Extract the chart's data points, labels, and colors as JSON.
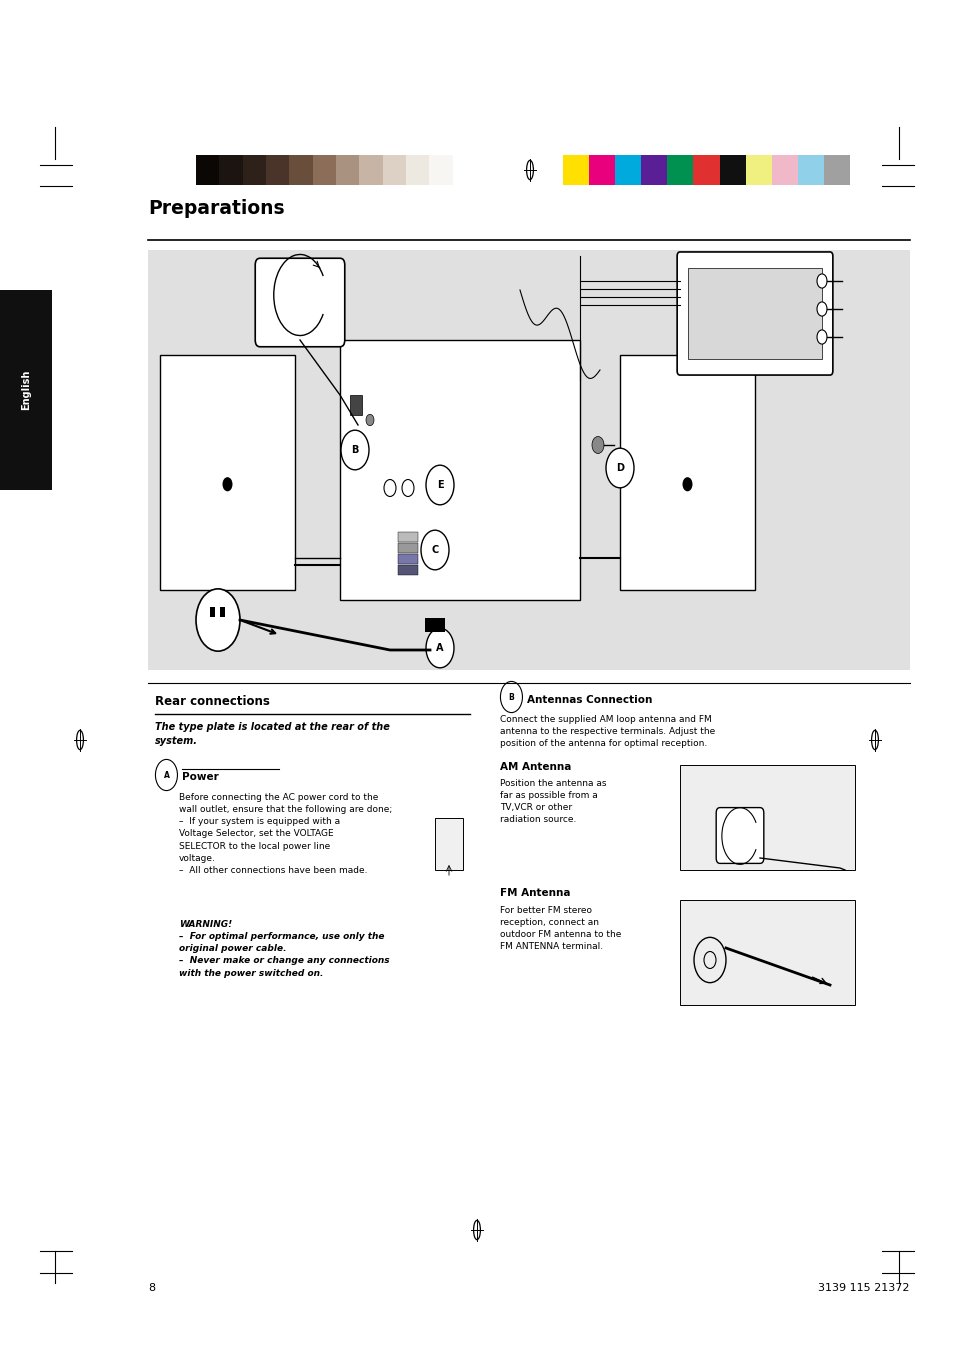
{
  "bg_color": "#ffffff",
  "page_width": 9.54,
  "page_height": 13.51,
  "title": "Preparations",
  "color_bar_left": [
    "#0a0705",
    "#1c1410",
    "#2e211a",
    "#4a3328",
    "#6a4e3c",
    "#8c6e58",
    "#aa9280",
    "#c8b4a4",
    "#ddd0c4",
    "#ede8e0",
    "#f8f6f2",
    "#ffffff"
  ],
  "color_bar_right": [
    "#ffe000",
    "#e8007c",
    "#00aadc",
    "#5a1e96",
    "#009050",
    "#e03030",
    "#101010",
    "#f0f080",
    "#f0b8c8",
    "#90d0e8",
    "#a0a0a0"
  ],
  "sidebar_text": "English",
  "sidebar_bg": "#101010",
  "section_title": "Rear connections",
  "section_italic": "The type plate is located at the rear of the\nsystem.",
  "subsection_A_title": "Power",
  "page_number": "8",
  "footer_code": "3139 115 21372",
  "diagram_bg": "#e0e0e0"
}
